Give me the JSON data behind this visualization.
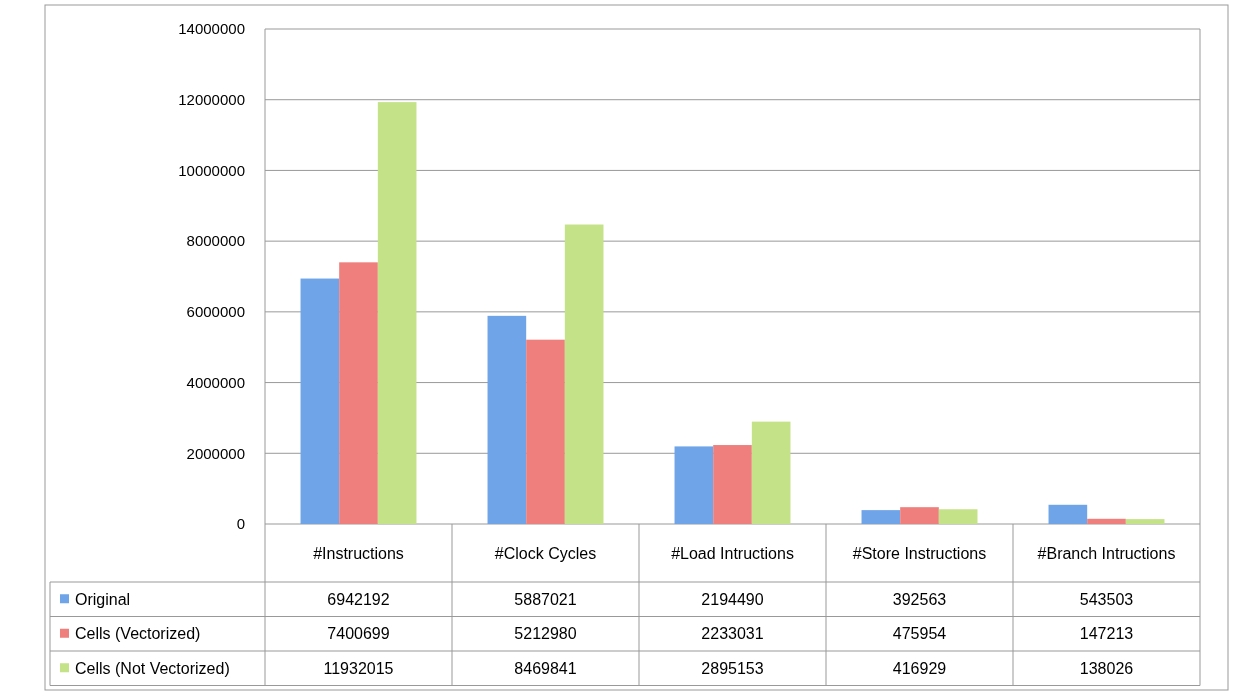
{
  "chart_data": {
    "type": "bar",
    "categories": [
      "#Instructions",
      "#Clock Cycles",
      "#Load Intructions",
      "#Store Instructions",
      "#Branch Intructions"
    ],
    "series": [
      {
        "name": "Original",
        "color": "#6fa5e8",
        "values": [
          6942192,
          5887021,
          2194490,
          392563,
          543503
        ]
      },
      {
        "name": "Cells (Vectorized)",
        "color": "#ee7f7c",
        "values": [
          7400699,
          5212980,
          2233031,
          475954,
          147213
        ]
      },
      {
        "name": "Cells (Not Vectorized)",
        "color": "#c4e287",
        "values": [
          11932015,
          8469841,
          2895153,
          416929,
          138026
        ]
      }
    ],
    "ylim": [
      0,
      14000000
    ],
    "yticks": [
      0,
      2000000,
      4000000,
      6000000,
      8000000,
      10000000,
      12000000,
      14000000
    ],
    "grid": "y",
    "legend": "bottom",
    "data_labels": true
  }
}
